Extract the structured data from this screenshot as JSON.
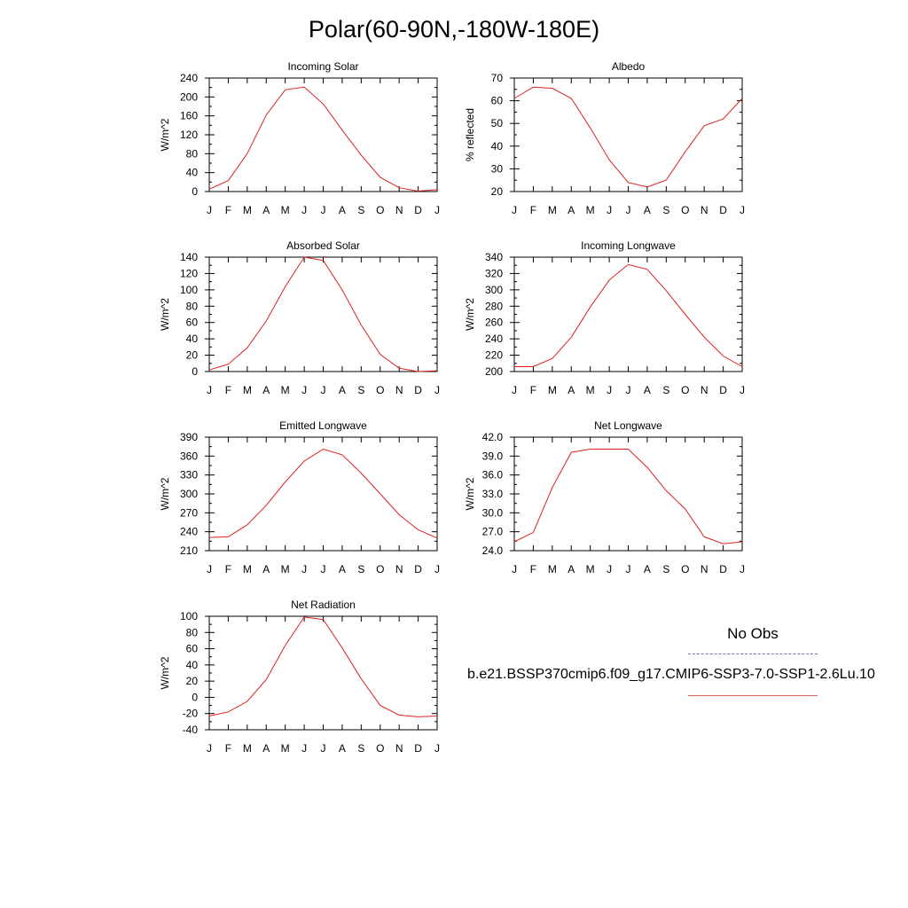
{
  "title": "Polar(60-90N,-180W-180E)",
  "legend": {
    "obs_label": "No Obs",
    "case_label": "b.e21.BSSP370cmip6.f09_g17.CMIP6-SSP3-7.0-SSP1-2.6Lu.10"
  },
  "colors": {
    "series": "#e02020",
    "obs": "#6f6fd8"
  },
  "chart_data": [
    {
      "type": "line",
      "title": "Incoming Solar",
      "ylabel": "W/m^2",
      "categories": [
        "J",
        "F",
        "M",
        "A",
        "M",
        "J",
        "J",
        "A",
        "S",
        "O",
        "N",
        "D",
        "J"
      ],
      "ylim": [
        0,
        240
      ],
      "yticks": [
        "0",
        "40",
        "80",
        "120",
        "160",
        "200",
        "240"
      ],
      "values": [
        5,
        23,
        80,
        162,
        215,
        221,
        185,
        130,
        77,
        30,
        8,
        1,
        4
      ]
    },
    {
      "type": "line",
      "title": "Albedo",
      "ylabel": "% reflected",
      "categories": [
        "J",
        "F",
        "M",
        "A",
        "M",
        "J",
        "J",
        "A",
        "S",
        "O",
        "N",
        "D",
        "J"
      ],
      "ylim": [
        20,
        70
      ],
      "yticks": [
        "20",
        "30",
        "40",
        "50",
        "60",
        "70"
      ],
      "values": [
        61,
        66,
        65.5,
        61,
        48,
        34,
        24,
        22,
        25,
        37.5,
        49,
        52,
        61
      ]
    },
    {
      "type": "line",
      "title": "Absorbed Solar",
      "ylabel": "W/m^2",
      "categories": [
        "J",
        "F",
        "M",
        "A",
        "M",
        "J",
        "J",
        "A",
        "S",
        "O",
        "N",
        "D",
        "J"
      ],
      "ylim": [
        0,
        140
      ],
      "yticks": [
        "0",
        "20",
        "40",
        "60",
        "80",
        "100",
        "120",
        "140"
      ],
      "values": [
        2,
        9,
        29,
        62,
        104,
        140,
        136,
        100,
        57,
        21,
        4,
        0,
        1
      ]
    },
    {
      "type": "line",
      "title": "Incoming Longwave",
      "ylabel": "W/m^2",
      "categories": [
        "J",
        "F",
        "M",
        "A",
        "M",
        "J",
        "J",
        "A",
        "S",
        "O",
        "N",
        "D",
        "J"
      ],
      "ylim": [
        200,
        340
      ],
      "yticks": [
        "200",
        "220",
        "240",
        "260",
        "280",
        "300",
        "320",
        "340"
      ],
      "values": [
        206,
        206,
        216,
        242,
        279,
        312,
        331,
        325,
        299,
        270,
        242,
        219,
        206
      ]
    },
    {
      "type": "line",
      "title": "Emitted Longwave",
      "ylabel": "W/m^2",
      "categories": [
        "J",
        "F",
        "M",
        "A",
        "M",
        "J",
        "J",
        "A",
        "S",
        "O",
        "N",
        "D",
        "J"
      ],
      "ylim": [
        210,
        390
      ],
      "yticks": [
        "210",
        "240",
        "270",
        "300",
        "330",
        "360",
        "390"
      ],
      "values": [
        231,
        232,
        251,
        282,
        319,
        352,
        371,
        362,
        333,
        300,
        267,
        243,
        230
      ]
    },
    {
      "type": "line",
      "title": "Net Longwave",
      "ylabel": "W/m^2",
      "categories": [
        "J",
        "F",
        "M",
        "A",
        "M",
        "J",
        "J",
        "A",
        "S",
        "O",
        "N",
        "D",
        "J"
      ],
      "ylim": [
        24,
        42
      ],
      "yticks": [
        "24.0",
        "27.0",
        "30.0",
        "33.0",
        "36.0",
        "39.0",
        "42.0"
      ],
      "values": [
        25.4,
        26.9,
        34,
        39.6,
        40.1,
        40.1,
        40.1,
        37.2,
        33.5,
        30.6,
        26.2,
        25.1,
        25.4
      ]
    },
    {
      "type": "line",
      "title": "Net Radiation",
      "ylabel": "W/m^2",
      "categories": [
        "J",
        "F",
        "M",
        "A",
        "M",
        "J",
        "J",
        "A",
        "S",
        "O",
        "N",
        "D",
        "J"
      ],
      "ylim": [
        -40,
        100
      ],
      "yticks": [
        "-40",
        "-20",
        "0",
        "20",
        "40",
        "60",
        "80",
        "100"
      ],
      "values": [
        -23,
        -18,
        -5,
        22,
        64,
        99,
        96,
        61,
        23,
        -10,
        -22,
        -24,
        -23
      ]
    }
  ]
}
